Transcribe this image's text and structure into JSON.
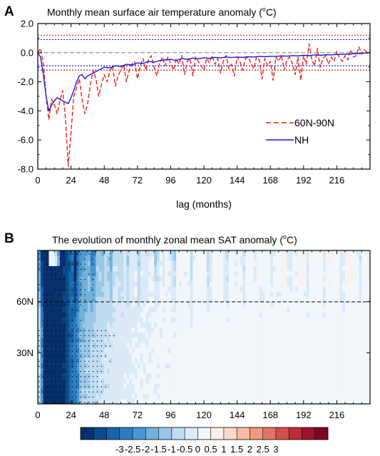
{
  "chart_data": [
    {
      "panel_label": "A",
      "type": "line",
      "title": "Monthly mean surface air temperature anomaly (",
      "title_sup": "o",
      "title_unit": "C)",
      "xlabel": "lag (months)",
      "xlim": [
        0,
        240
      ],
      "ylim": [
        -8,
        2
      ],
      "x_ticks": [
        0,
        24,
        48,
        72,
        96,
        120,
        144,
        168,
        192,
        216
      ],
      "y_ticks": [
        2,
        0,
        -2,
        -4,
        -6,
        -8
      ],
      "y_tick_labels": [
        "2.0",
        "0.0",
        "-2.0",
        "-4.0",
        "-6.0",
        "-8.0"
      ],
      "reference_lines": [
        {
          "y": 0.0,
          "color": "#888888",
          "style": "dashed"
        },
        {
          "y": 1.2,
          "color": "#e8201a",
          "style": "dotted"
        },
        {
          "y": 0.9,
          "color": "#1a1ad6",
          "style": "dotted"
        },
        {
          "y": -0.9,
          "color": "#1a1ad6",
          "style": "dotted"
        },
        {
          "y": -1.2,
          "color": "#e8201a",
          "style": "dotted"
        }
      ],
      "legend_position": "right, middle",
      "series": [
        {
          "name": "60N-90N",
          "color": "#e8201a",
          "style": "dashed",
          "x": [
            0,
            2,
            4,
            6,
            8,
            10,
            12,
            14,
            16,
            18,
            20,
            22,
            24,
            26,
            28,
            30,
            32,
            34,
            36,
            38,
            40,
            42,
            44,
            46,
            48,
            50,
            52,
            54,
            56,
            58,
            60,
            62,
            64,
            66,
            68,
            70,
            72,
            74,
            76,
            78,
            80,
            82,
            84,
            86,
            88,
            90,
            92,
            94,
            96,
            98,
            100,
            102,
            104,
            106,
            108,
            110,
            112,
            114,
            116,
            118,
            120,
            122,
            124,
            126,
            128,
            130,
            132,
            134,
            136,
            138,
            140,
            142,
            144,
            146,
            148,
            150,
            152,
            154,
            156,
            158,
            160,
            162,
            164,
            166,
            168,
            170,
            172,
            174,
            176,
            178,
            180,
            182,
            184,
            186,
            188,
            190,
            192,
            194,
            196,
            198,
            200,
            202,
            204,
            206,
            208,
            210,
            212,
            214,
            216,
            218,
            220,
            222,
            224,
            226,
            228,
            230,
            232,
            234,
            236,
            238,
            240
          ],
          "values": [
            0.0,
            0.3,
            -0.8,
            -3.0,
            -4.6,
            -3.2,
            -3.6,
            -4.2,
            -3.3,
            -2.6,
            -4.5,
            -7.8,
            -5.5,
            -3.0,
            -2.4,
            -1.8,
            -3.2,
            -4.2,
            -3.5,
            -2.2,
            -1.2,
            -1.8,
            -3.0,
            -2.2,
            -1.5,
            -2.0,
            -1.3,
            -0.9,
            -2.3,
            -1.6,
            -1.2,
            -0.8,
            -2.0,
            -1.2,
            -0.8,
            -0.6,
            -1.8,
            -0.9,
            -0.4,
            -1.2,
            -0.5,
            -0.2,
            -1.0,
            -1.6,
            -0.7,
            -0.3,
            -0.9,
            -0.3,
            -0.7,
            -1.2,
            -0.4,
            -0.8,
            -0.2,
            -1.5,
            -0.6,
            -0.4,
            -1.6,
            -0.3,
            -0.6,
            -0.9,
            -1.2,
            -0.4,
            -0.7,
            -0.2,
            -0.8,
            -0.4,
            -1.4,
            -0.6,
            -0.2,
            -1.1,
            -0.8,
            -1.6,
            -0.3,
            -0.6,
            -1.2,
            -0.4,
            -0.3,
            -0.7,
            -1.1,
            -0.3,
            -0.5,
            -1.8,
            -0.4,
            -0.9,
            -0.6,
            -1.9,
            -0.3,
            -0.6,
            -0.2,
            -1.2,
            -0.5,
            -0.3,
            -0.8,
            -1.5,
            -0.3,
            -1.9,
            -0.2,
            -0.8,
            0.6,
            -0.5,
            -0.9,
            0.3,
            -1.0,
            -0.4,
            -0.2,
            -0.8,
            -0.3,
            -0.6,
            0.1,
            -0.4,
            -0.6,
            -0.2,
            -0.5,
            0.2,
            -0.3,
            -0.2,
            0.4,
            -0.1,
            0.2,
            0.0,
            0.0
          ]
        },
        {
          "name": "NH",
          "color": "#1a1ad6",
          "style": "solid",
          "x": [
            0,
            2,
            4,
            6,
            8,
            10,
            12,
            14,
            16,
            18,
            20,
            22,
            24,
            26,
            28,
            30,
            32,
            34,
            36,
            40,
            44,
            48,
            52,
            56,
            60,
            64,
            68,
            72,
            76,
            80,
            84,
            88,
            92,
            96,
            100,
            104,
            108,
            112,
            116,
            120,
            124,
            128,
            132,
            136,
            140,
            144,
            148,
            152,
            156,
            160,
            164,
            168,
            172,
            176,
            180,
            184,
            188,
            192,
            196,
            200,
            204,
            208,
            212,
            216,
            220,
            224,
            228,
            232,
            236,
            240
          ],
          "values": [
            0.0,
            -0.3,
            -1.5,
            -3.0,
            -4.0,
            -3.6,
            -3.3,
            -3.1,
            -3.2,
            -3.3,
            -3.4,
            -3.5,
            -3.1,
            -2.6,
            -2.0,
            -1.6,
            -1.5,
            -1.8,
            -1.6,
            -1.4,
            -1.2,
            -1.0,
            -1.05,
            -0.9,
            -0.95,
            -0.8,
            -0.85,
            -0.7,
            -0.75,
            -0.6,
            -0.65,
            -0.55,
            -0.5,
            -0.45,
            -0.55,
            -0.4,
            -0.45,
            -0.38,
            -0.42,
            -0.35,
            -0.4,
            -0.32,
            -0.36,
            -0.3,
            -0.34,
            -0.3,
            -0.33,
            -0.28,
            -0.3,
            -0.25,
            -0.28,
            -0.25,
            -0.26,
            -0.22,
            -0.24,
            -0.2,
            -0.22,
            -0.18,
            -0.2,
            -0.15,
            -0.18,
            -0.14,
            -0.15,
            -0.12,
            -0.12,
            -0.1,
            -0.08,
            -0.06,
            -0.04,
            0.0
          ]
        }
      ]
    },
    {
      "panel_label": "B",
      "type": "heatmap",
      "title": "The evolution of monthly zonal mean SAT anomaly (",
      "title_sup": "o",
      "title_unit": "C)",
      "xlim": [
        0,
        240
      ],
      "ylim": [
        0,
        90
      ],
      "x_ticks": [
        0,
        24,
        48,
        72,
        96,
        120,
        144,
        168,
        192,
        216
      ],
      "y_ticks": [
        30,
        60
      ],
      "y_tick_labels": [
        "30N",
        "60N"
      ],
      "reference_lines": [
        {
          "y": 60,
          "color": "#000000",
          "style": "dashed"
        }
      ],
      "colorbar": {
        "labels": [
          "-3",
          "-2.5",
          "-2",
          "-1.5",
          "-1",
          "-0.5",
          "0",
          "0.5",
          "1",
          "1.5",
          "2",
          "2.5",
          "3"
        ],
        "colors": [
          "#08306b",
          "#0b4a8a",
          "#1764a8",
          "#2c7dc0",
          "#4a98d0",
          "#71b1dd",
          "#9ac7e8",
          "#bfdcf1",
          "#dceaf7",
          "#f2f7fc",
          "#fdf0ea",
          "#fbd9c9",
          "#f6bba2",
          "#f09a7d",
          "#e37560",
          "#d2504a",
          "#bb2c39",
          "#9f142d",
          "#7d0624"
        ]
      },
      "stippling": "significant regions marked with dots"
    }
  ]
}
